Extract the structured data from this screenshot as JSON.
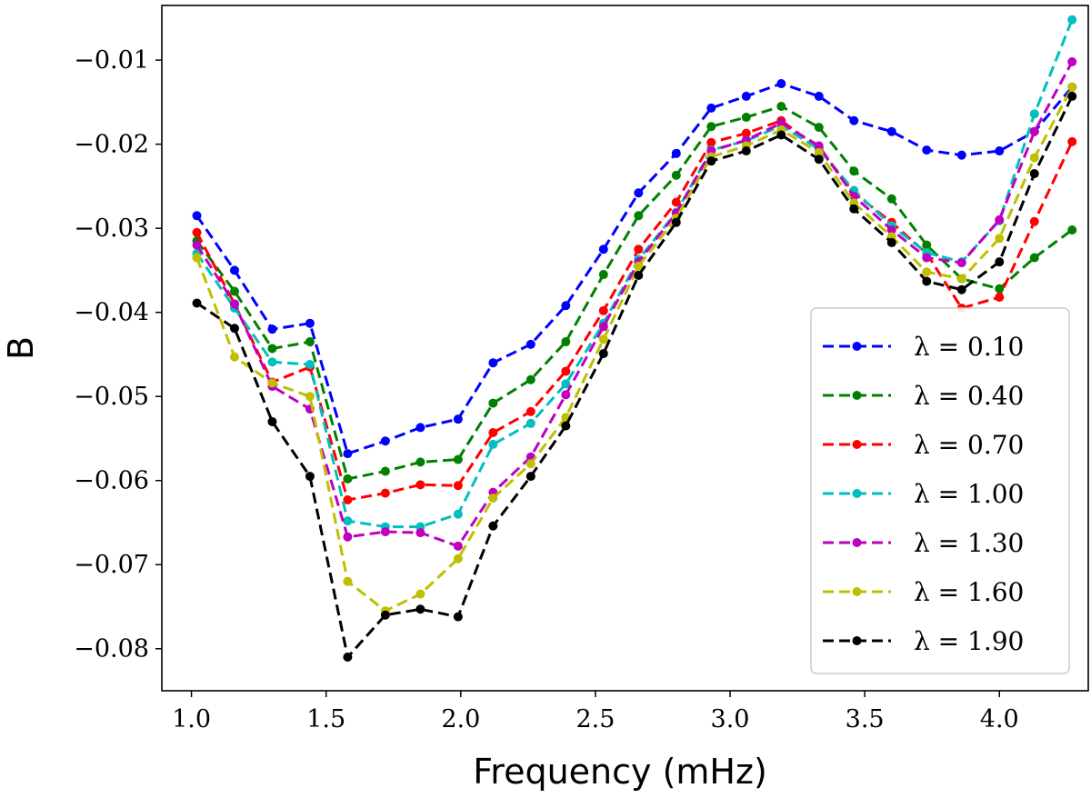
{
  "chart_data": {
    "type": "line",
    "title": "",
    "xlabel": "Frequency (mHz)",
    "ylabel": "B",
    "xlim": [
      0.89,
      4.33
    ],
    "ylim": [
      -0.085,
      -0.0035
    ],
    "xticks": [
      1.0,
      1.5,
      2.0,
      2.5,
      3.0,
      3.5,
      4.0
    ],
    "xtick_labels": [
      "1.0",
      "1.5",
      "2.0",
      "2.5",
      "3.0",
      "3.5",
      "4.0"
    ],
    "yticks": [
      -0.01,
      -0.02,
      -0.03,
      -0.04,
      -0.05,
      -0.06,
      -0.07,
      -0.08
    ],
    "ytick_labels": [
      "−0.01",
      "−0.02",
      "−0.03",
      "−0.04",
      "−0.05",
      "−0.06",
      "−0.07",
      "−0.08"
    ],
    "grid": false,
    "legend_position": "lower-right",
    "x": [
      1.02,
      1.16,
      1.3,
      1.44,
      1.58,
      1.72,
      1.85,
      1.99,
      2.12,
      2.26,
      2.39,
      2.53,
      2.66,
      2.8,
      2.93,
      3.06,
      3.19,
      3.33,
      3.46,
      3.6,
      3.73,
      3.86,
      4.0,
      4.13,
      4.27
    ],
    "series": [
      {
        "name": "λ = 0.10",
        "color": "#0000ff",
        "values": [
          -0.0285,
          -0.035,
          -0.042,
          -0.0413,
          -0.0568,
          -0.0553,
          -0.0537,
          -0.0527,
          -0.046,
          -0.0438,
          -0.0392,
          -0.0325,
          -0.0258,
          -0.0211,
          -0.0157,
          -0.0143,
          -0.0128,
          -0.0143,
          -0.0172,
          -0.0185,
          -0.0207,
          -0.0213,
          -0.0208,
          -0.0185,
          -0.0132
        ]
      },
      {
        "name": "λ = 0.40",
        "color": "#008000",
        "values": [
          -0.0315,
          -0.0375,
          -0.0443,
          -0.0435,
          -0.0598,
          -0.0589,
          -0.0578,
          -0.0575,
          -0.0508,
          -0.048,
          -0.0435,
          -0.0355,
          -0.0285,
          -0.0237,
          -0.0179,
          -0.0168,
          -0.0155,
          -0.018,
          -0.0232,
          -0.0265,
          -0.032,
          -0.036,
          -0.0372,
          -0.0335,
          -0.0302
        ]
      },
      {
        "name": "λ = 0.70",
        "color": "#ff0000",
        "values": [
          -0.0305,
          -0.039,
          -0.0483,
          -0.0465,
          -0.0623,
          -0.0615,
          -0.0605,
          -0.0606,
          -0.0543,
          -0.0518,
          -0.047,
          -0.0398,
          -0.0325,
          -0.0269,
          -0.0198,
          -0.0187,
          -0.0172,
          -0.0205,
          -0.0258,
          -0.0293,
          -0.033,
          -0.0395,
          -0.0382,
          -0.0292,
          -0.0197
        ]
      },
      {
        "name": "λ = 1.00",
        "color": "#00bfbf",
        "values": [
          -0.033,
          -0.0395,
          -0.0459,
          -0.0462,
          -0.0648,
          -0.0655,
          -0.0655,
          -0.064,
          -0.0557,
          -0.0532,
          -0.0485,
          -0.0413,
          -0.0337,
          -0.0281,
          -0.0207,
          -0.0196,
          -0.0178,
          -0.0206,
          -0.0255,
          -0.0297,
          -0.0329,
          -0.034,
          -0.0291,
          -0.0164,
          -0.0052
        ]
      },
      {
        "name": "λ = 1.30",
        "color": "#bf00bf",
        "values": [
          -0.032,
          -0.039,
          -0.0488,
          -0.0515,
          -0.0667,
          -0.0661,
          -0.0662,
          -0.0678,
          -0.0614,
          -0.0572,
          -0.0498,
          -0.0417,
          -0.034,
          -0.0282,
          -0.0208,
          -0.0195,
          -0.0175,
          -0.0202,
          -0.0262,
          -0.0302,
          -0.0335,
          -0.0341,
          -0.029,
          -0.0185,
          -0.0102
        ]
      },
      {
        "name": "λ = 1.60",
        "color": "#bfbf00",
        "values": [
          -0.0335,
          -0.0453,
          -0.0484,
          -0.05,
          -0.072,
          -0.0755,
          -0.0735,
          -0.0693,
          -0.0621,
          -0.058,
          -0.0525,
          -0.0432,
          -0.0345,
          -0.0288,
          -0.0215,
          -0.0202,
          -0.0183,
          -0.021,
          -0.027,
          -0.031,
          -0.0352,
          -0.036,
          -0.0312,
          -0.0216,
          -0.0132
        ]
      },
      {
        "name": "λ = 1.90",
        "color": "#000000",
        "values": [
          -0.0389,
          -0.0419,
          -0.053,
          -0.0595,
          -0.081,
          -0.076,
          -0.0753,
          -0.0762,
          -0.0654,
          -0.0595,
          -0.0535,
          -0.0449,
          -0.0356,
          -0.0293,
          -0.022,
          -0.0208,
          -0.0189,
          -0.0218,
          -0.0277,
          -0.0317,
          -0.0363,
          -0.0373,
          -0.034,
          -0.0235,
          -0.0143
        ]
      }
    ]
  }
}
